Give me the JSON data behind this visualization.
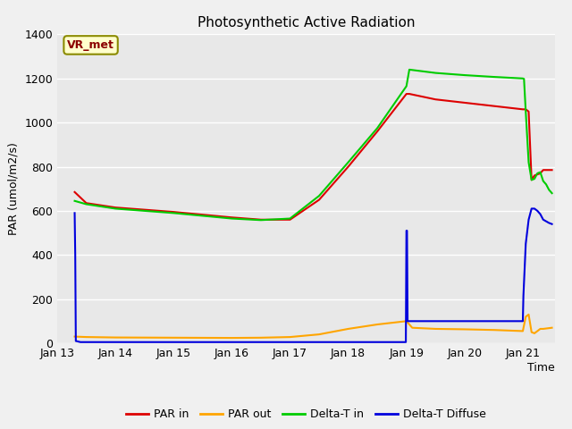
{
  "title": "Photosynthetic Active Radiation",
  "ylabel": "PAR (umol/m2/s)",
  "xlabel": "Time",
  "annotation": "VR_met",
  "ylim": [
    0,
    1400
  ],
  "series": {
    "PAR_in": {
      "color": "#dd0000",
      "label": "PAR in",
      "x": [
        13.3,
        13.5,
        14.0,
        15.0,
        16.0,
        16.5,
        17.0,
        17.5,
        18.0,
        18.5,
        19.0,
        19.05,
        19.5,
        20.0,
        20.5,
        21.0,
        21.05,
        21.1,
        21.15,
        21.2,
        21.3,
        21.35,
        21.5
      ],
      "y": [
        685,
        635,
        615,
        595,
        570,
        560,
        560,
        650,
        800,
        960,
        1130,
        1130,
        1105,
        1090,
        1075,
        1060,
        1060,
        1050,
        740,
        760,
        770,
        785,
        785
      ]
    },
    "PAR_out": {
      "color": "#ffa500",
      "label": "PAR out",
      "x": [
        13.3,
        13.5,
        14.0,
        15.0,
        16.0,
        16.5,
        17.0,
        17.5,
        18.0,
        18.5,
        19.0,
        19.05,
        19.1,
        19.5,
        20.0,
        20.5,
        21.0,
        21.05,
        21.1,
        21.15,
        21.2,
        21.25,
        21.3,
        21.35,
        21.5
      ],
      "y": [
        30,
        28,
        26,
        25,
        24,
        25,
        28,
        40,
        65,
        85,
        100,
        85,
        70,
        65,
        63,
        60,
        55,
        120,
        130,
        50,
        45,
        55,
        65,
        65,
        70
      ]
    },
    "Delta_T_in": {
      "color": "#00cc00",
      "label": "Delta-T in",
      "x": [
        13.3,
        13.5,
        14.0,
        15.0,
        16.0,
        16.5,
        17.0,
        17.5,
        18.0,
        18.5,
        19.0,
        19.05,
        19.5,
        20.0,
        20.5,
        21.0,
        21.02,
        21.05,
        21.1,
        21.15,
        21.2,
        21.25,
        21.3,
        21.35,
        21.4,
        21.45,
        21.5
      ],
      "y": [
        645,
        630,
        610,
        590,
        565,
        558,
        565,
        668,
        820,
        975,
        1165,
        1240,
        1225,
        1215,
        1207,
        1200,
        1198,
        1050,
        820,
        740,
        745,
        770,
        775,
        735,
        720,
        695,
        680
      ]
    },
    "Delta_T_Diffuse": {
      "color": "#0000dd",
      "label": "Delta-T Diffuse",
      "x": [
        13.3,
        13.31,
        13.32,
        13.4,
        13.5,
        14.0,
        15.0,
        16.0,
        16.5,
        17.0,
        17.5,
        18.0,
        18.5,
        18.99,
        19.0,
        19.01,
        19.02,
        19.5,
        20.0,
        20.5,
        20.99,
        21.0,
        21.01,
        21.05,
        21.1,
        21.15,
        21.2,
        21.25,
        21.3,
        21.35,
        21.45,
        21.5
      ],
      "y": [
        590,
        400,
        10,
        5,
        5,
        5,
        5,
        5,
        5,
        5,
        5,
        5,
        5,
        5,
        510,
        510,
        100,
        100,
        100,
        100,
        100,
        100,
        215,
        450,
        560,
        610,
        610,
        600,
        585,
        560,
        545,
        540
      ]
    }
  },
  "xticks": {
    "positions": [
      13,
      14,
      15,
      16,
      17,
      18,
      19,
      20,
      21
    ],
    "labels": [
      "Jan 13",
      "Jan 14",
      "Jan 15",
      "Jan 16",
      "Jan 17",
      "Jan 18",
      "Jan 19",
      "Jan 20",
      "Jan 21"
    ]
  },
  "yticks": [
    0,
    200,
    400,
    600,
    800,
    1000,
    1200,
    1400
  ],
  "grid_color": "#ffffff",
  "plot_bg": "#e8e8e8",
  "fig_bg": "#f0f0f0",
  "xlim": [
    13.0,
    21.55
  ]
}
